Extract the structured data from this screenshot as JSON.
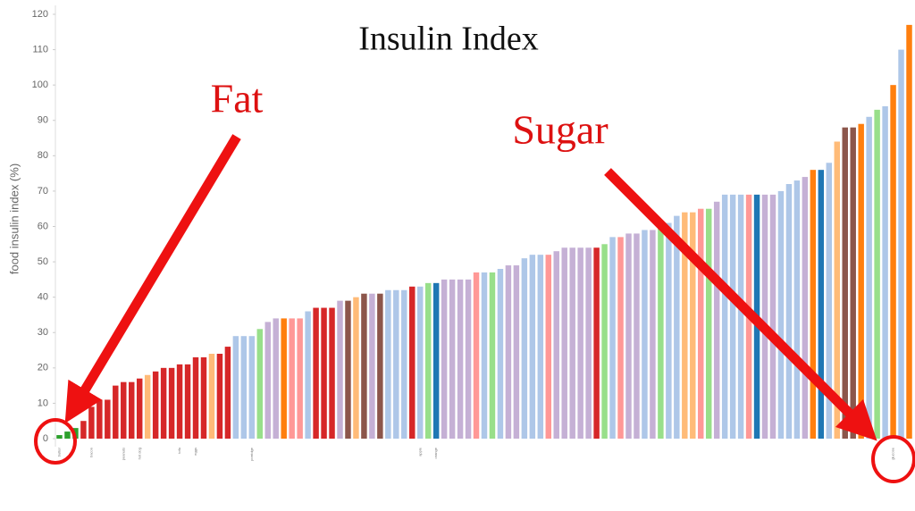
{
  "chart_data": {
    "type": "bar",
    "title": "Insulin Index",
    "ylabel": "food insulin index (%)",
    "annotations": [
      "Fat",
      "Sugar"
    ],
    "categories": [
      "butter",
      null,
      null,
      null,
      "bacon",
      null,
      null,
      null,
      "peanuts",
      null,
      "hot dog",
      null,
      null,
      null,
      null,
      "tofu",
      null,
      "eggs",
      null,
      null,
      null,
      null,
      null,
      null,
      "porridge",
      null,
      null,
      null,
      null,
      null,
      null,
      null,
      null,
      null,
      null,
      null,
      null,
      null,
      null,
      null,
      null,
      null,
      null,
      null,
      null,
      "apple",
      null,
      "orange",
      null,
      null,
      null,
      null,
      null,
      null,
      null,
      null,
      null,
      null,
      null,
      null,
      null,
      null,
      null,
      null,
      null,
      null,
      null,
      null,
      null,
      null,
      null,
      null,
      null,
      null,
      null,
      null,
      null,
      null,
      null,
      null,
      null,
      null,
      null,
      null,
      null,
      null,
      null,
      null,
      null,
      null,
      null,
      null,
      null,
      null,
      null,
      null,
      null,
      null,
      null,
      null,
      null,
      null,
      null,
      null,
      "glucose",
      null,
      null
    ],
    "values": [
      1,
      2,
      3,
      5,
      9,
      11,
      11,
      15,
      16,
      16,
      17,
      18,
      19,
      20,
      20,
      21,
      21,
      23,
      23,
      24,
      24,
      26,
      29,
      29,
      29,
      31,
      33,
      34,
      34,
      34,
      34,
      36,
      37,
      37,
      37,
      39,
      39,
      40,
      41,
      41,
      41,
      42,
      42,
      42,
      43,
      43,
      44,
      44,
      45,
      45,
      45,
      45,
      47,
      47,
      47,
      48,
      49,
      49,
      51,
      52,
      52,
      52,
      53,
      54,
      54,
      54,
      54,
      54,
      55,
      57,
      57,
      58,
      58,
      59,
      59,
      60,
      61,
      63,
      64,
      64,
      65,
      65,
      67,
      69,
      69,
      69,
      69,
      69,
      69,
      69,
      70,
      72,
      73,
      74,
      76,
      76,
      78,
      84,
      88,
      88,
      89,
      91,
      93,
      94,
      100,
      110,
      117
    ],
    "colors": [
      "#2ca02c",
      "#2ca02c",
      "#2ca02c",
      "#d62728",
      "#d62728",
      "#d62728",
      "#d62728",
      "#d62728",
      "#d62728",
      "#d62728",
      "#d62728",
      "#ffbb78",
      "#d62728",
      "#d62728",
      "#d62728",
      "#d62728",
      "#d62728",
      "#d62728",
      "#d62728",
      "#ffbb78",
      "#d62728",
      "#d62728",
      "#aec7e8",
      "#aec7e8",
      "#aec7e8",
      "#98df8a",
      "#c5b0d5",
      "#c5b0d5",
      "#ff7f0e",
      "#ff9896",
      "#ff9896",
      "#aec7e8",
      "#d62728",
      "#d62728",
      "#d62728",
      "#c5b0d5",
      "#8c564b",
      "#ffbb78",
      "#8c564b",
      "#c5b0d5",
      "#8c564b",
      "#aec7e8",
      "#aec7e8",
      "#aec7e8",
      "#d62728",
      "#aec7e8",
      "#98df8a",
      "#1f77b4",
      "#c5b0d5",
      "#c5b0d5",
      "#c5b0d5",
      "#c5b0d5",
      "#ff9896",
      "#aec7e8",
      "#98df8a",
      "#aec7e8",
      "#c5b0d5",
      "#c5b0d5",
      "#aec7e8",
      "#aec7e8",
      "#aec7e8",
      "#ff9896",
      "#c5b0d5",
      "#c5b0d5",
      "#c5b0d5",
      "#c5b0d5",
      "#c5b0d5",
      "#d62728",
      "#98df8a",
      "#aec7e8",
      "#ff9896",
      "#c5b0d5",
      "#c5b0d5",
      "#aec7e8",
      "#c5b0d5",
      "#98df8a",
      "#aec7e8",
      "#aec7e8",
      "#ffbb78",
      "#ffbb78",
      "#ff9896",
      "#98df8a",
      "#c5b0d5",
      "#aec7e8",
      "#aec7e8",
      "#aec7e8",
      "#ff9896",
      "#1f77b4",
      "#c5b0d5",
      "#c5b0d5",
      "#aec7e8",
      "#aec7e8",
      "#aec7e8",
      "#c5b0d5",
      "#ff7f0e",
      "#1f77b4",
      "#aec7e8",
      "#ffbb78",
      "#8c564b",
      "#8c564b",
      "#ff7f0e",
      "#aec7e8",
      "#98df8a",
      "#aec7e8",
      "#ff7f0e",
      "#aec7e8",
      "#ff7f0e"
    ],
    "ylim": [
      0,
      120
    ],
    "yticks": [
      0,
      10,
      20,
      30,
      40,
      50,
      60,
      70,
      80,
      90,
      100,
      110,
      120
    ],
    "grid": false
  }
}
